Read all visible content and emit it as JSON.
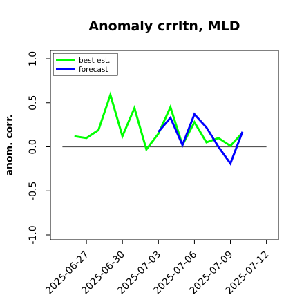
{
  "chart_data": {
    "type": "line",
    "title": "Anomaly crrltn, MLD",
    "ylabel": "anom. corr.",
    "xlabel": "",
    "ylim": [
      -1.0,
      1.0
    ],
    "xlim": [
      "2025-06-24",
      "2025-07-13"
    ],
    "yticks": [
      "-1.0",
      "-0.5",
      "0.0",
      "0.5",
      "1.0"
    ],
    "yticks_values": [
      -1.0,
      -0.5,
      0.0,
      0.5,
      1.0
    ],
    "xticks": [
      {
        "date": "2025-06-27",
        "label": "2025-06-27",
        "color": "#000000"
      },
      {
        "date": "2025-06-30",
        "label": "2025-06-30",
        "color": "#000000"
      },
      {
        "date": "2025-07-03",
        "label": "2025-07-03",
        "color": "#228B22"
      },
      {
        "date": "2025-07-06",
        "label": "2025-07-06",
        "color": "#000000"
      },
      {
        "date": "2025-07-09",
        "label": "2025-07-09",
        "color": "#000000"
      },
      {
        "date": "2025-07-12",
        "label": "2025-07-12",
        "color": "#000000"
      }
    ],
    "reference_line": {
      "y": 0.0,
      "from": "2025-06-25",
      "to": "2025-07-12",
      "color": "#555555"
    },
    "grid": false,
    "legend_position": "top-left",
    "series": [
      {
        "name": "best est.",
        "color": "#00FF00",
        "x": [
          "2025-06-26",
          "2025-06-27",
          "2025-06-28",
          "2025-06-29",
          "2025-06-30",
          "2025-07-01",
          "2025-07-02",
          "2025-07-03",
          "2025-07-04",
          "2025-07-05",
          "2025-07-06",
          "2025-07-07",
          "2025-07-08",
          "2025-07-09",
          "2025-07-10"
        ],
        "values": [
          0.12,
          0.1,
          0.19,
          0.59,
          0.12,
          0.44,
          -0.03,
          0.15,
          0.45,
          0.02,
          0.28,
          0.05,
          0.1,
          0.01,
          0.16
        ]
      },
      {
        "name": "forecast",
        "color": "#0000FF",
        "x": [
          "2025-07-03",
          "2025-07-04",
          "2025-07-05",
          "2025-07-06",
          "2025-07-07",
          "2025-07-08",
          "2025-07-09",
          "2025-07-10"
        ],
        "values": [
          0.17,
          0.33,
          0.02,
          0.37,
          0.22,
          0.0,
          -0.19,
          0.17
        ]
      }
    ]
  }
}
